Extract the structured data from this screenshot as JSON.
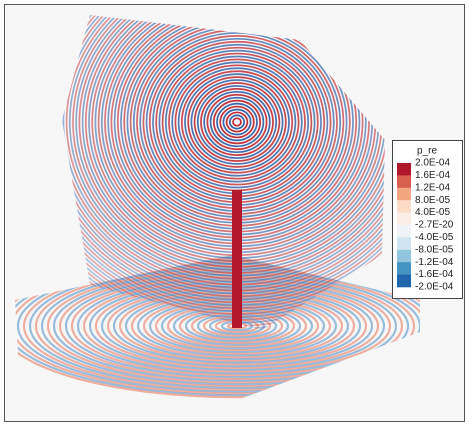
{
  "legend": {
    "title": "p_re",
    "labels": [
      "2.0E-04",
      "1.6E-04",
      "1.2E-04",
      "8.0E-05",
      "4.0E-05",
      "-2.7E-20",
      "-4.0E-05",
      "-8.0E-05",
      "-1.2E-04",
      "-1.6E-04",
      "-2.0E-04"
    ]
  }
}
